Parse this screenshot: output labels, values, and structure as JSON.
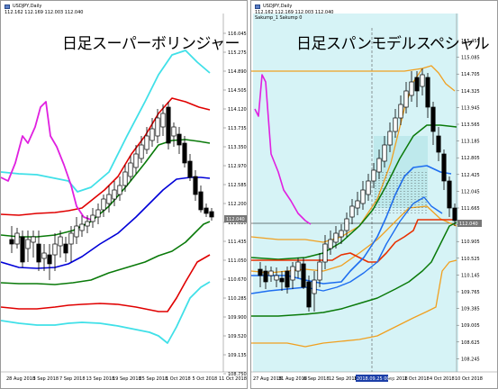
{
  "left_chart": {
    "info_symbol": "USDJPY,Daily",
    "info_ohlc": "112.162 112.169 112.003 112.040",
    "title": "日足スーパーボリンジャー",
    "y_ticks": [
      "116.045",
      "115.275",
      "114.890",
      "114.505",
      "114.120",
      "113.735",
      "113.350",
      "112.970",
      "112.585",
      "112.200",
      "111.820",
      "111.435",
      "111.050",
      "110.670",
      "110.285",
      "109.900",
      "109.520",
      "109.135",
      "108.750"
    ],
    "current_price": "112.040",
    "x_ticks": [
      "28 Aug 2018",
      "3 Sep 2018",
      "7 Sep 2018",
      "13 Sep 2018",
      "19 Sep 2018",
      "25 Sep 2018",
      "1 Oct 2018",
      "5 Oct 2018",
      "11 Oct 2018"
    ]
  },
  "right_chart": {
    "info_symbol": "USDJPY,Daily",
    "info_ohlc": "112.162 112.169 112.003 112.040",
    "info_line2": "Sakump_1 Sakump 0",
    "title": "日足スパンモデルスペシャル",
    "y_ticks": [
      "115.455",
      "115.085",
      "114.705",
      "114.325",
      "113.945",
      "113.565",
      "113.185",
      "112.805",
      "112.425",
      "112.045",
      "111.665",
      "111.285",
      "110.905",
      "110.525",
      "110.145",
      "109.765",
      "109.385",
      "109.005",
      "108.625",
      "108.245"
    ],
    "current_price": "112.040",
    "x_ticks": [
      "27 Aug 2018",
      "31 Aug 2018",
      "6 Sep 2018",
      "12 Sep 2018",
      "19 Sep 2018",
      "25 Sep 2018",
      "1 Oct 2018",
      "4 Oct 2018",
      "10 Oct 2018"
    ],
    "crosshair_date": "2018.09.25 00:00"
  },
  "colors": {
    "up_candle": "#ffffff",
    "down_candle": "#000000",
    "band_cyan": "#40e0e8",
    "band_red": "#e00000",
    "band_green": "#0a7a0a",
    "band_blue": "#0000d8",
    "lagging_magenta": "#e020e0",
    "span_shade": "#d6f3f6",
    "span_orange": "#f0a020",
    "price_line_red": "#e83000"
  }
}
